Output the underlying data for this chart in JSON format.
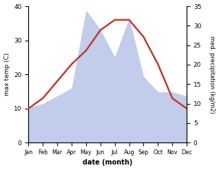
{
  "months": [
    "Jan",
    "Feb",
    "Mar",
    "Apr",
    "May",
    "Jun",
    "Jul",
    "Aug",
    "Sep",
    "Oct",
    "Nov",
    "Dec"
  ],
  "temperature": [
    10,
    13,
    18,
    23,
    27,
    33,
    36,
    36,
    31,
    23,
    13,
    10
  ],
  "precipitation": [
    9,
    10,
    12,
    14,
    34,
    29,
    22,
    32,
    17,
    13,
    13,
    12
  ],
  "temp_color": "#c0392b",
  "precip_fill_color": "#b8c4e8",
  "temp_ylim": [
    0,
    40
  ],
  "precip_ylim": [
    0,
    35
  ],
  "temp_yticks": [
    0,
    10,
    20,
    30,
    40
  ],
  "precip_yticks": [
    0,
    5,
    10,
    15,
    20,
    25,
    30,
    35
  ],
  "xlabel": "date (month)",
  "ylabel_left": "max temp (C)",
  "ylabel_right": "med. precipitation (kg/m2)",
  "linewidth": 1.8
}
